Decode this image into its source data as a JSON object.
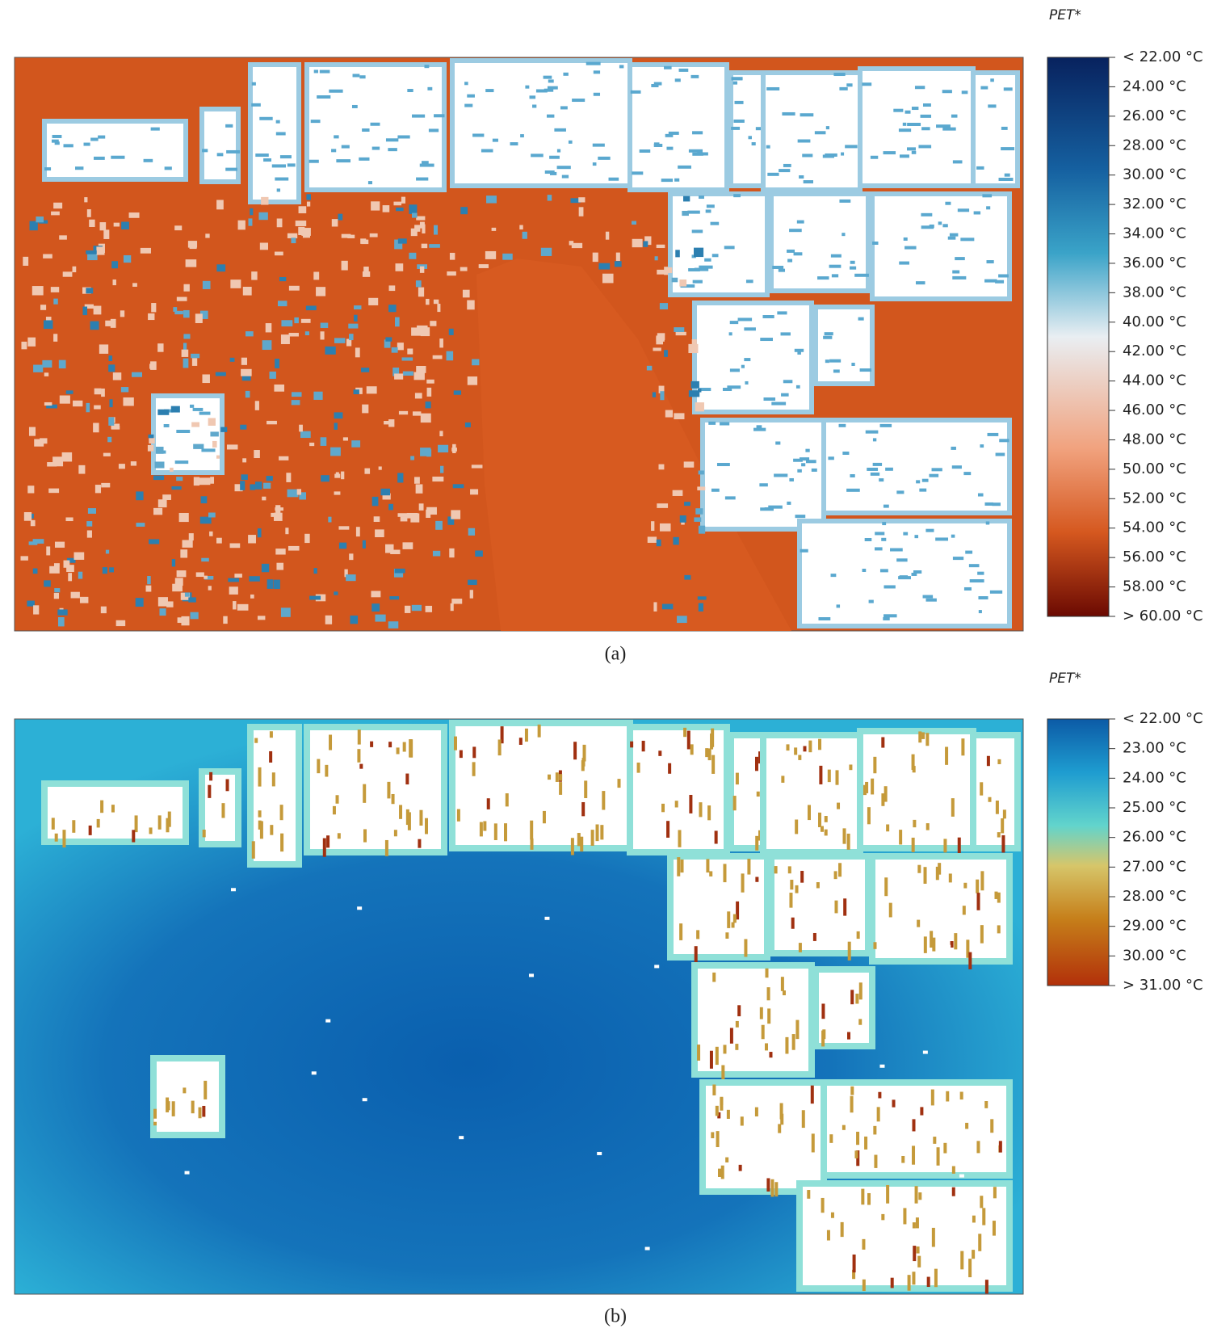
{
  "panels": [
    {
      "legend_title": "PET*",
      "caption": "(a)",
      "legend_labels": [
        "< 22.00 °C",
        "24.00 °C",
        "26.00 °C",
        "28.00 °C",
        "30.00 °C",
        "32.00 °C",
        "34.00 °C",
        "36.00 °C",
        "38.00 °C",
        "40.00 °C",
        "42.00 °C",
        "44.00 °C",
        "46.00 °C",
        "48.00 °C",
        "50.00 °C",
        "52.00 °C",
        "54.00 °C",
        "56.00 °C",
        "58.00 °C",
        "> 60.00 °C"
      ]
    },
    {
      "legend_title": "PET*",
      "caption": "(b)",
      "legend_labels": [
        "< 22.00 °C",
        "23.00 °C",
        "24.00 °C",
        "25.00 °C",
        "26.00 °C",
        "27.00 °C",
        "28.00 °C",
        "29.00 °C",
        "30.00 °C",
        "> 31.00 °C"
      ]
    }
  ]
}
